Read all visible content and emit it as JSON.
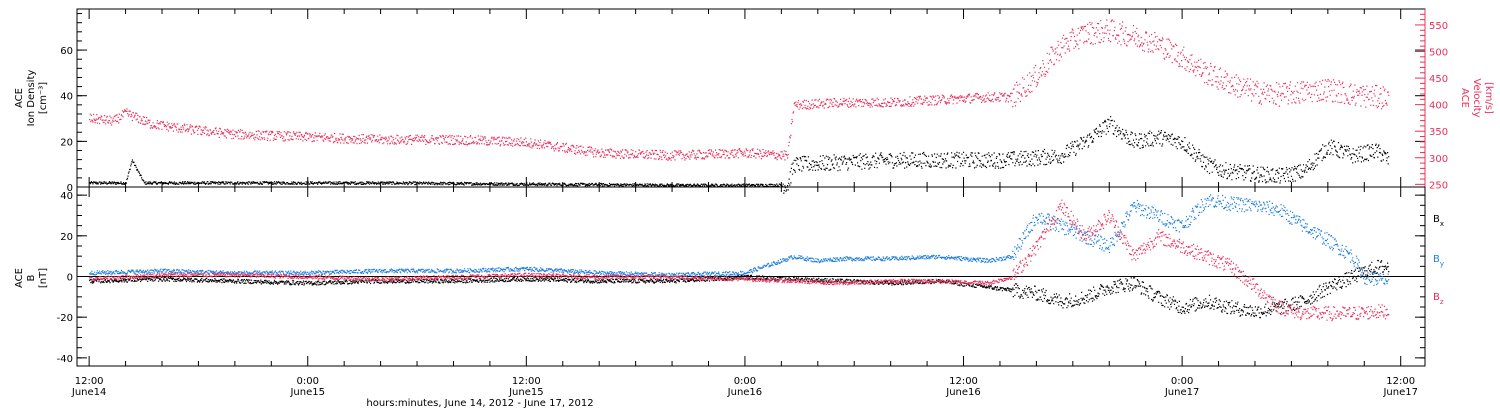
{
  "colors": {
    "black": "#000000",
    "red": "#e8305a",
    "blue": "#1e7fe0"
  },
  "chart_data": [
    {
      "type": "scatter",
      "panel": "top",
      "ylabel_left": [
        "ACE",
        "Ion Density",
        "[cm⁻³]"
      ],
      "ylabel_right": [
        "ACE",
        "Velocity",
        "[km/s]"
      ],
      "ylim_left": [
        0,
        78
      ],
      "ylim_right": [
        245,
        580
      ],
      "yticks_left": [
        0,
        20,
        40,
        60
      ],
      "yticks_right": [
        250,
        300,
        350,
        400,
        450,
        500,
        550
      ],
      "series": [
        {
          "color": "black",
          "axis": "left",
          "x_hours": [
            0,
            3,
            3.5,
            4,
            4.5,
            6,
            12,
            24,
            36,
            48,
            54,
            57.5,
            58,
            62,
            66,
            70,
            75,
            78,
            80,
            82,
            84,
            86,
            88,
            90,
            92,
            93,
            94,
            96,
            98,
            100,
            102,
            104,
            106,
            107
          ],
          "values": [
            2,
            2,
            12,
            7,
            2,
            2,
            2,
            2,
            1.5,
            1,
            1,
            1,
            10,
            11,
            12,
            12,
            12,
            13,
            14,
            20,
            28,
            20,
            22,
            20,
            10,
            8,
            7,
            6,
            5,
            7,
            18,
            14,
            16,
            12
          ]
        },
        {
          "color": "red",
          "axis": "right",
          "x_hours": [
            0,
            2,
            3,
            4,
            5,
            8,
            12,
            18,
            24,
            30,
            36,
            42,
            48,
            54,
            57.5,
            58,
            62,
            66,
            70,
            74,
            76,
            77.5,
            78,
            80,
            82,
            84,
            86,
            88,
            90,
            92,
            94,
            96,
            98,
            100,
            102,
            104,
            106,
            107
          ],
          "values": [
            375,
            370,
            385,
            375,
            365,
            355,
            345,
            340,
            335,
            335,
            330,
            310,
            305,
            310,
            305,
            400,
            405,
            405,
            410,
            415,
            415,
            445,
            455,
            510,
            535,
            540,
            530,
            515,
            490,
            460,
            440,
            425,
            420,
            425,
            430,
            420,
            415,
            415
          ]
        }
      ]
    },
    {
      "type": "scatter",
      "panel": "bottom",
      "ylabel_left": [
        "ACE",
        "B",
        "[nT]"
      ],
      "ylim": [
        -44,
        44
      ],
      "yticks": [
        -40,
        -20,
        0,
        20,
        40
      ],
      "zero_line": true,
      "legend": [
        "Bx",
        "By",
        "Bz"
      ],
      "series": [
        {
          "name": "Bx",
          "color": "black",
          "x_hours": [
            0,
            6,
            12,
            18,
            24,
            30,
            36,
            42,
            48,
            54,
            58,
            62,
            66,
            70,
            74,
            78,
            80,
            82,
            84,
            86,
            88,
            90,
            92,
            94,
            96,
            98,
            100,
            102,
            104,
            106,
            107
          ],
          "values": [
            -2,
            -1,
            -2,
            -3,
            -2,
            -2,
            -1,
            -2,
            -2,
            0,
            -1,
            -2,
            -3,
            -2,
            -5,
            -8,
            -12,
            -10,
            -5,
            -3,
            -10,
            -15,
            -12,
            -15,
            -17,
            -15,
            -12,
            -5,
            0,
            5,
            5
          ]
        },
        {
          "name": "By",
          "color": "blue",
          "x_hours": [
            0,
            6,
            12,
            18,
            24,
            30,
            36,
            42,
            48,
            54,
            58,
            60,
            62,
            66,
            70,
            74,
            76,
            78,
            80,
            82,
            84,
            86,
            88,
            90,
            92,
            94,
            96,
            98,
            100,
            102,
            104,
            105,
            107
          ],
          "values": [
            2,
            3,
            2,
            2,
            3,
            3,
            4,
            2,
            1,
            2,
            10,
            8,
            9,
            9,
            10,
            8,
            10,
            30,
            25,
            20,
            15,
            35,
            30,
            25,
            38,
            36,
            35,
            33,
            25,
            18,
            10,
            0,
            -2
          ]
        },
        {
          "name": "Bz",
          "color": "red",
          "x_hours": [
            0,
            6,
            12,
            18,
            24,
            30,
            36,
            42,
            48,
            54,
            58,
            62,
            66,
            70,
            74,
            76,
            78,
            80,
            82,
            84,
            86,
            88,
            90,
            92,
            94,
            96,
            98,
            100,
            102,
            104,
            106,
            107
          ],
          "values": [
            -1,
            1,
            1,
            0,
            -1,
            0,
            1,
            0,
            0,
            -1,
            -2,
            -3,
            -2,
            -2,
            -3,
            0,
            15,
            35,
            20,
            30,
            10,
            20,
            15,
            10,
            5,
            -5,
            -15,
            -18,
            -18,
            -18,
            -17,
            -17
          ]
        }
      ]
    }
  ],
  "x_axis": {
    "range_hours": [
      -1,
      110
    ],
    "tick_labels": [
      {
        "hour": 0,
        "top": "12:00",
        "bottom": "June14"
      },
      {
        "hour": 18,
        "top": "0:00",
        "bottom": "June15"
      },
      {
        "hour": 36,
        "top": "12:00",
        "bottom": "June15"
      },
      {
        "hour": 54,
        "top": "0:00",
        "bottom": "June16"
      },
      {
        "hour": 72,
        "top": "12:00",
        "bottom": "June16"
      },
      {
        "hour": 90,
        "top": "0:00",
        "bottom": "June17"
      },
      {
        "hour": 108,
        "top": "12:00",
        "bottom": "June17"
      }
    ],
    "title": "hours:minutes, June 14, 2012 - June 17, 2012"
  }
}
